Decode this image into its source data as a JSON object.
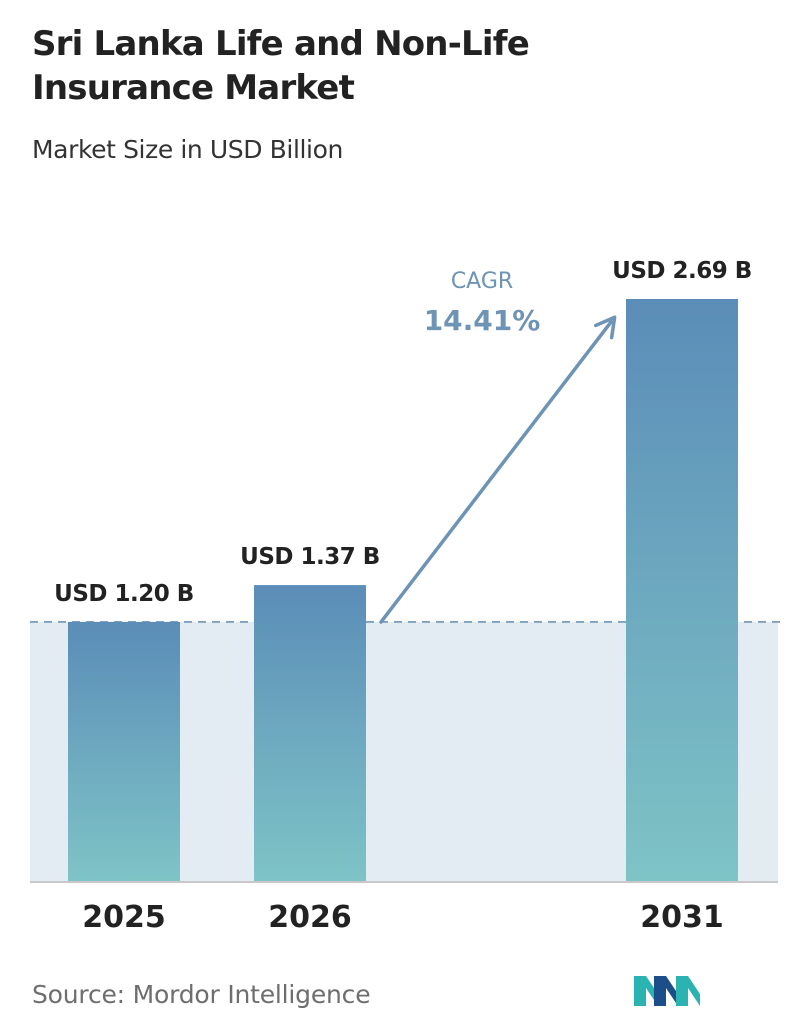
{
  "title": "Sri Lanka Life and Non-Life Insurance Market",
  "subtitle": "Market Size in USD Billion",
  "source": "Source:  Mordor Intelligence",
  "cagr": {
    "label": "CAGR",
    "value": "14.41%"
  },
  "colors": {
    "bar_top": "#5b8db8",
    "bar_bottom": "#7ec4c6",
    "band": "#e3ebf3",
    "dash_line": "#6d93b5",
    "cagr_text": "#6d93b5",
    "arrow": "#6d93b5",
    "axis": "#c8c8c8",
    "logo_teal": "#2ab3b1",
    "logo_navy": "#1c4f8a"
  },
  "chart_data": {
    "type": "bar",
    "categories": [
      "2025",
      "2026",
      "2031"
    ],
    "values": [
      1.2,
      1.37,
      2.69
    ],
    "value_labels": [
      "USD 1.20 B",
      "USD 1.37 B",
      "USD 2.69 B"
    ],
    "reference_value": 1.2,
    "ylim": [
      0,
      2.69
    ],
    "grid": false
  }
}
